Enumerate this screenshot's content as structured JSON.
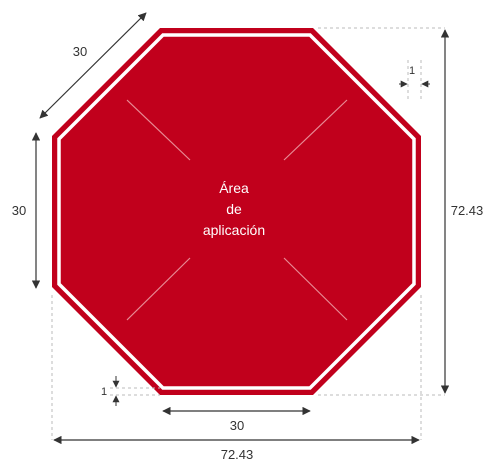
{
  "diagram": {
    "area_label_lines": [
      "Área",
      "de",
      "aplicación"
    ],
    "dimensions": {
      "diagonal_side": "30",
      "left_side": "30",
      "bottom_side": "30",
      "total_width": "72.43",
      "total_height": "72.43",
      "border_right": "1",
      "border_bottom": "1"
    },
    "colors": {
      "octagon_fill": "#c1001c",
      "border": "#ffffff",
      "guide_lines": "#e88a94",
      "dimension_lines": "#333333",
      "dashed_guides": "#bbbbbb"
    }
  }
}
